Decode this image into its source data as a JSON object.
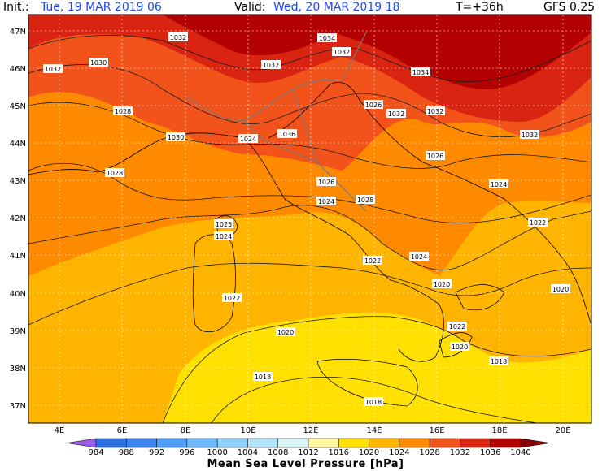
{
  "header": {
    "init_label": "Init.:",
    "init_value": "Tue, 19 MAR 2019  06",
    "valid_label": "Valid:",
    "valid_value": "Wed, 20 MAR 2019  18",
    "lead": "T=+36h",
    "model": "GFS 0.25"
  },
  "map": {
    "lon_ticks": [
      "4E",
      "6E",
      "8E",
      "10E",
      "12E",
      "14E",
      "16E",
      "18E",
      "20E"
    ],
    "lat_ticks": [
      "47N",
      "46N",
      "45N",
      "44N",
      "43N",
      "42N",
      "41N",
      "40N",
      "39N",
      "38N",
      "37N"
    ],
    "isobar_labels": [
      "1032",
      "1034",
      "1032",
      "1030",
      "1032",
      "1032",
      "1034",
      "1032",
      "1028",
      "1030",
      "1036",
      "1024",
      "1032",
      "1026",
      "1032",
      "1028",
      "1024",
      "1026",
      "1024",
      "1028",
      "1026",
      "1024",
      "1022",
      "1022",
      "1025",
      "1024",
      "1022",
      "1020",
      "1020",
      "1022",
      "1020",
      "1020",
      "1018",
      "1018",
      "1018"
    ]
  },
  "colorbar": {
    "title": "Mean Sea Level Pressure [hPa]",
    "ticks": [
      "984",
      "988",
      "992",
      "996",
      "1000",
      "1004",
      "1008",
      "1012",
      "1016",
      "1020",
      "1024",
      "1028",
      "1032",
      "1036",
      "1040"
    ],
    "colors": [
      "#9b5de5",
      "#2f6fe0",
      "#3d86f0",
      "#4e9ef5",
      "#6cb8fb",
      "#8ecff9",
      "#b3e3f7",
      "#d8f3f3",
      "#fff6a0",
      "#ffe000",
      "#ffb400",
      "#ff8a00",
      "#f2531a",
      "#d82411",
      "#b30000",
      "#8a0000"
    ]
  }
}
